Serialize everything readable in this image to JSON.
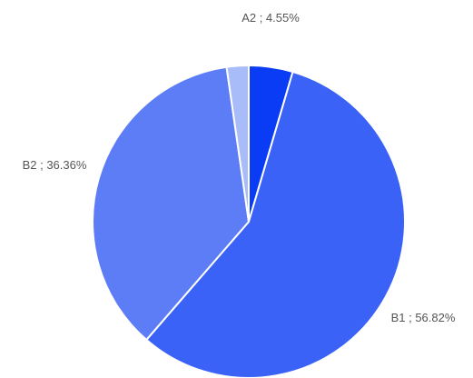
{
  "chart_data": {
    "type": "pie",
    "slices": [
      {
        "label": "A2 ; 4.55%",
        "category": "A2",
        "value": 4.55,
        "color": "#0a3cf5"
      },
      {
        "label": "B1 ; 56.82%",
        "category": "B1",
        "value": 56.82,
        "color": "#3a62f7"
      },
      {
        "label": "B2 ; 36.36%",
        "category": "B2",
        "value": 36.36,
        "color": "#5c7df6"
      },
      {
        "label": "",
        "category": "",
        "value": 2.27,
        "color": "#a9bcfa"
      }
    ]
  }
}
